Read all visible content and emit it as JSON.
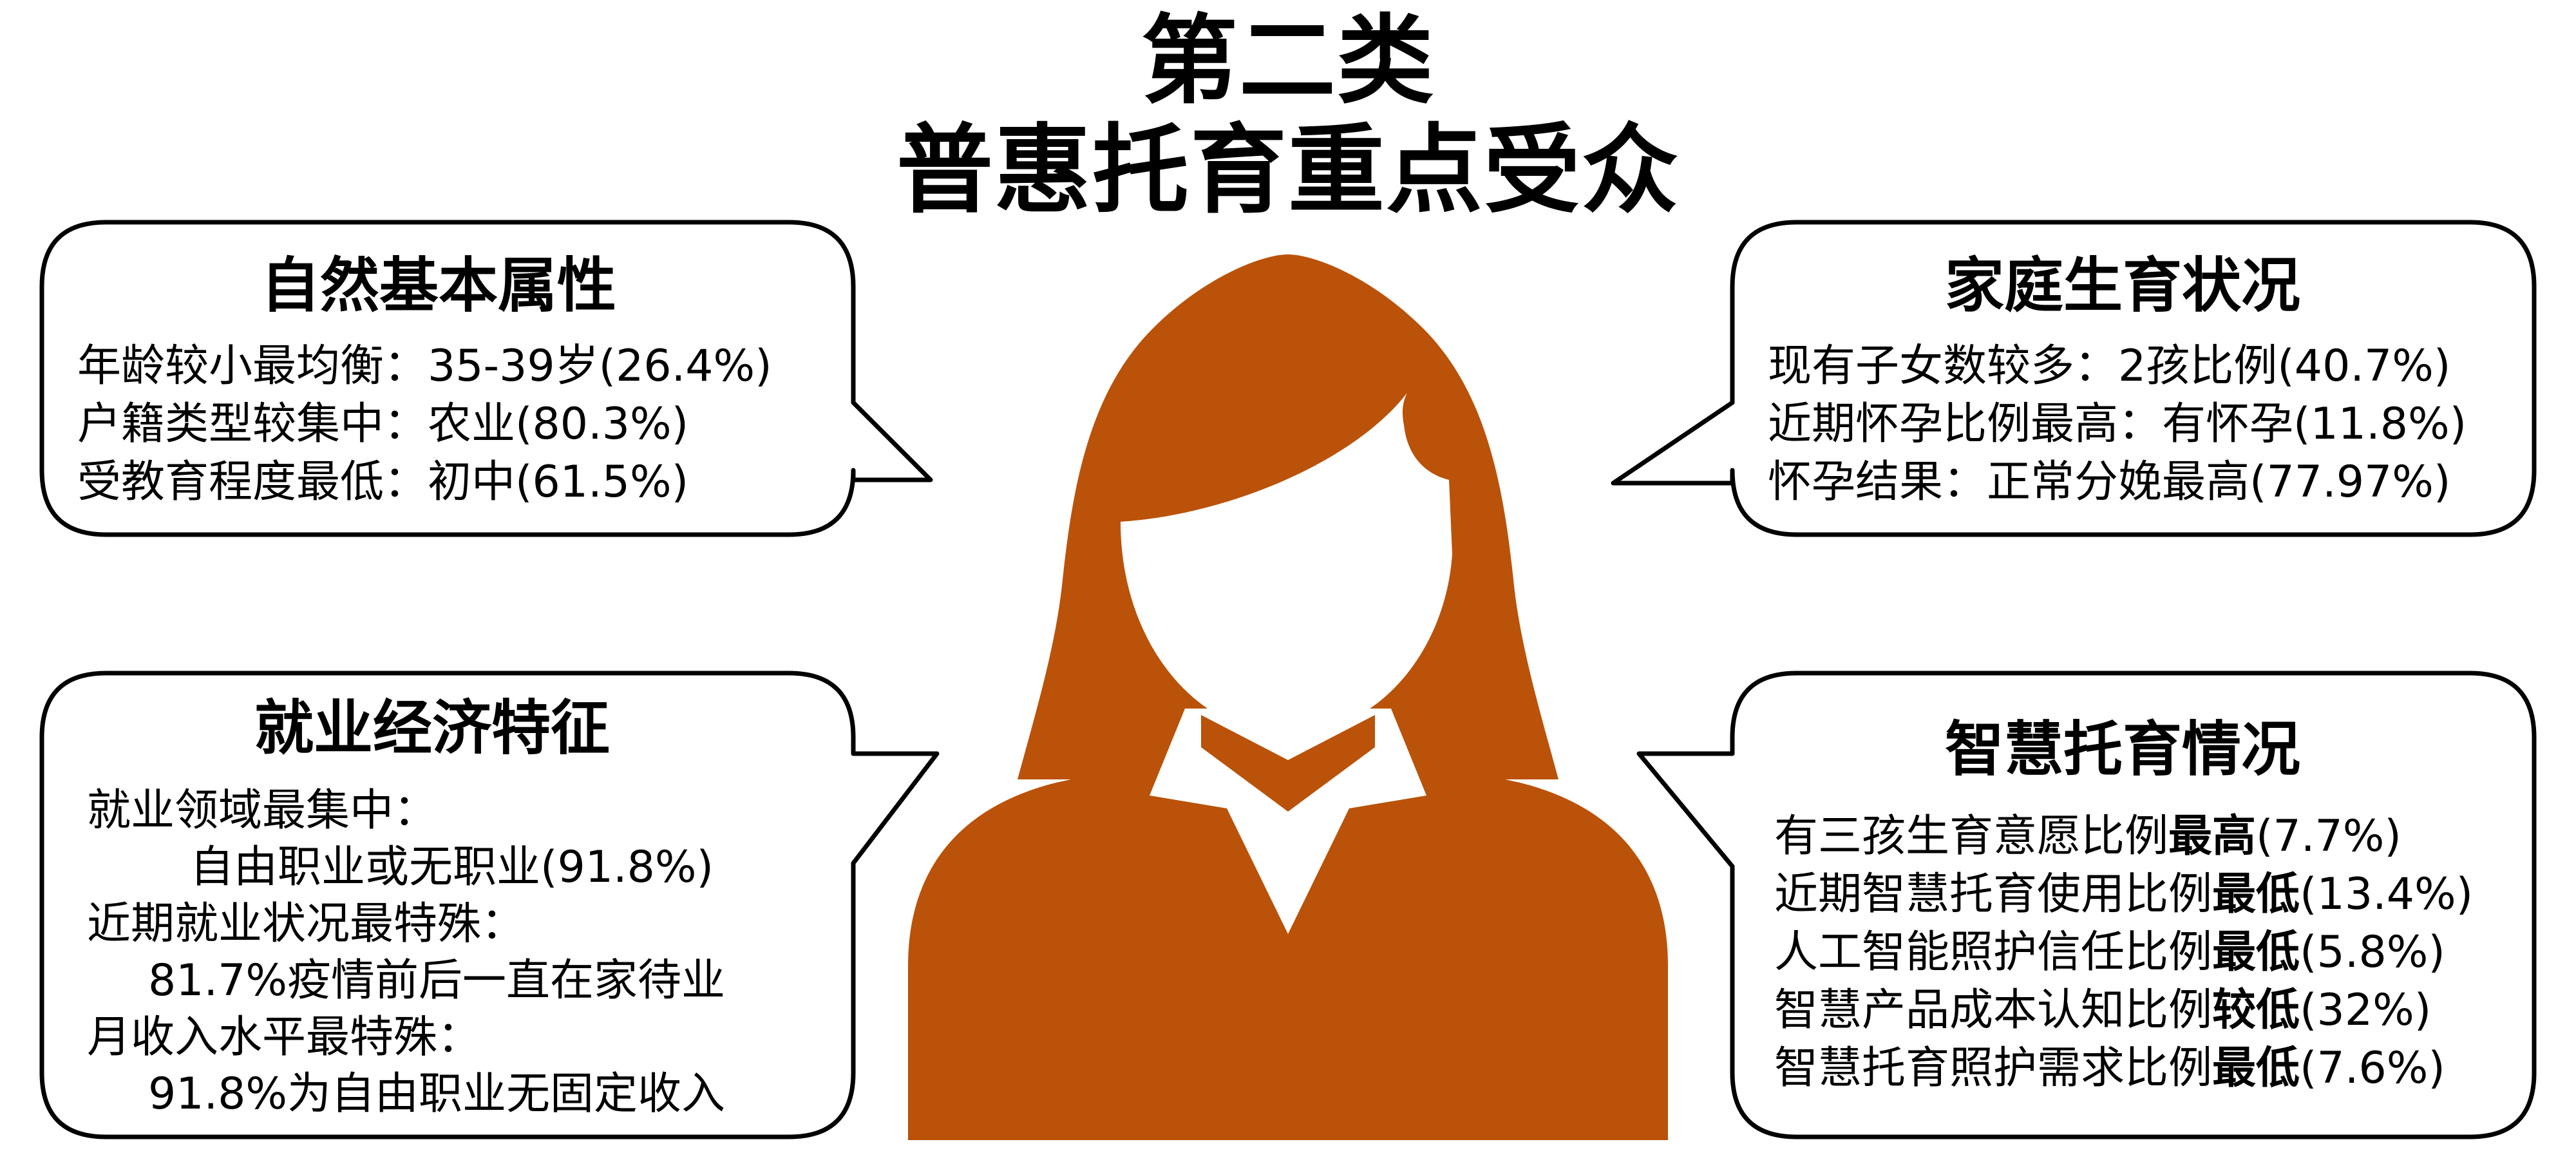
{
  "title": {
    "line1": "第二类",
    "line2": "普惠托育重点受众"
  },
  "colors": {
    "figure": "#BA5209",
    "text": "#000000",
    "bubble_stroke": "#000000",
    "background": "#FFFFFF"
  },
  "figure": {
    "icon": "woman-silhouette-icon"
  },
  "panels": {
    "natural": {
      "heading": "自然基本属性",
      "lines": [
        {
          "label": "年龄较小最均衡：",
          "value": "35-39岁(26.4%)"
        },
        {
          "label": "户籍类型较集中：",
          "value": "农业(80.3%)"
        },
        {
          "label": "受教育程度最低：",
          "value": "初中(61.5%)"
        }
      ]
    },
    "family": {
      "heading": "家庭生育状况",
      "lines": [
        {
          "label": "现有子女数较多：",
          "value": "2孩比例(40.7%)"
        },
        {
          "label": "近期怀孕比例最高：",
          "value": "有怀孕(11.8%)"
        },
        {
          "label": "怀孕结果：",
          "value": "正常分娩最高(77.97%)"
        }
      ]
    },
    "employment": {
      "heading": "就业经济特征",
      "lines": [
        "就业领域最集中：",
        "自由职业或无职业(91.8%)",
        "近期就业状况最特殊：",
        "81.7%疫情前后一直在家待业",
        "月收入水平最特殊：",
        "91.8%为自由职业无固定收入"
      ]
    },
    "smart": {
      "heading": "智慧托育情况",
      "lines": [
        {
          "text": "有三孩生育意愿比例",
          "bold": "最高",
          "value": "(7.7%)"
        },
        {
          "text": "近期智慧托育使用比例",
          "bold": "最低",
          "value": "(13.4%)"
        },
        {
          "text": "人工智能照护信任比例",
          "bold": "最低",
          "value": "(5.8%)"
        },
        {
          "text": "智慧产品成本认知比例",
          "bold": "较低",
          "value": "(32%)"
        },
        {
          "text": "智慧托育照护需求比例",
          "bold": "最低",
          "value": "(7.6%)"
        }
      ]
    }
  }
}
